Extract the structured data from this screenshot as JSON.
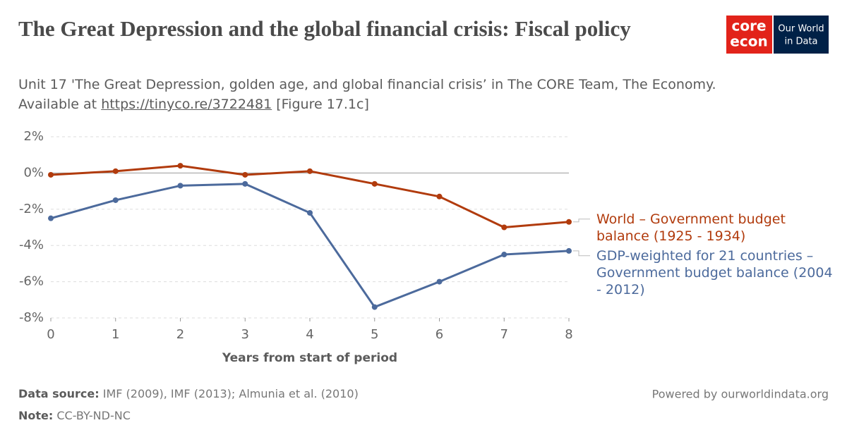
{
  "chart_data": {
    "type": "line",
    "title": "The Great Depression and the global financial crisis: Fiscal policy",
    "subtitle": "Unit 17 'The Great Depression, golden age, and global financial crisis’ in The CORE Team, The Economy. Available at ",
    "subtitle_link": "https://tinyco.re/3722481",
    "subtitle_end": " [Figure 17.1c]",
    "x_label": "Years from start of period",
    "x": [
      0,
      1,
      2,
      3,
      4,
      5,
      6,
      7,
      8
    ],
    "xlim": [
      0,
      8
    ],
    "xticks": [
      0,
      1,
      2,
      3,
      4,
      5,
      6,
      7,
      8
    ],
    "ylim": [
      -8,
      2
    ],
    "yticks": [
      {
        "value": -8,
        "label": "-8%"
      },
      {
        "value": -6,
        "label": "-6%"
      },
      {
        "value": -4,
        "label": "-4%"
      },
      {
        "value": -2,
        "label": "-2%"
      },
      {
        "value": 0,
        "label": "0%"
      },
      {
        "value": 2,
        "label": "2%"
      }
    ],
    "grid": true,
    "series": [
      {
        "name": "World – Government budget balance (1925 - 1934)",
        "color": "#b13b0d",
        "values": [
          -0.1,
          0.1,
          0.4,
          -0.1,
          0.1,
          -0.6,
          -1.3,
          -3.0,
          -2.7
        ]
      },
      {
        "name": "GDP-weighted for 21 countries – Government budget balance (2004 - 2012)",
        "color": "#4c6a9c",
        "values": [
          -2.5,
          -1.5,
          -0.7,
          -0.6,
          -2.2,
          -7.4,
          -6.0,
          -4.5,
          -4.3
        ]
      }
    ],
    "source_label": "Data source:",
    "source": "IMF (2009), IMF (2013); Almunia et al. (2010)",
    "note_label": "Note:",
    "note": "CC-BY-ND-NC",
    "credit": "Powered by ourworldindata.org",
    "logo": {
      "core": "core",
      "econ": "econ",
      "owid_1": "Our World",
      "owid_2": "in Data"
    }
  }
}
